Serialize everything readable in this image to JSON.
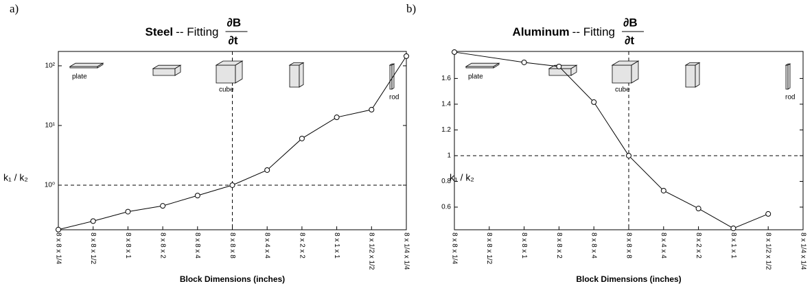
{
  "chart_data": [
    {
      "type": "line",
      "panel": "a)",
      "title": "Steel",
      "title_suffix": "-- Fitting",
      "title_fraction": {
        "numerator": "∂B",
        "denominator": "∂t"
      },
      "xlabel": "Block Dimensions (inches)",
      "ylabel": "k₁ / k₂",
      "categories": [
        "8 x 8 x 1/4",
        "8 x 8 x 1/2",
        "8 x 8 x 1",
        "8 x 8 x 2",
        "8 x 8 x 4",
        "8 x 8 x 8",
        "8 x 4 x 4",
        "8 x 2 x 2",
        "8 x 1 x 1",
        "8 x 1/2 x 1/2",
        "8 x 1/4 x 1/4"
      ],
      "x": [
        0,
        1,
        2,
        3,
        4,
        5,
        6,
        7,
        8,
        9,
        10
      ],
      "values": [
        0.18,
        0.25,
        0.36,
        0.45,
        0.67,
        1.0,
        1.79,
        6.05,
        13.7,
        18.4,
        145
      ],
      "xlim": [
        0,
        10
      ],
      "ylim": [
        0.179,
        174
      ],
      "log_y": true,
      "yticks": [
        {
          "value": 1,
          "label": "10⁰"
        },
        {
          "value": 10,
          "label": "10¹"
        },
        {
          "value": 100,
          "label": "10²"
        }
      ],
      "hline": 1,
      "vline": 5,
      "color": "#000000",
      "annotations": [
        "plate",
        "cube",
        "rod"
      ]
    },
    {
      "type": "line",
      "panel": "b)",
      "title": "Aluminum",
      "title_suffix": "-- Fitting",
      "title_fraction": {
        "numerator": "∂B",
        "denominator": "∂t"
      },
      "xlabel": "Block Dimensions (inches)",
      "ylabel": "k₁ / k₂",
      "categories": [
        "8 x 8 x 1/4",
        "8 x 8 x 1/2",
        "8 x 8 x 1",
        "8 x 8 x 2",
        "8 x 8 x 4",
        "8 x 8 x 8",
        "8 x 4 x 4",
        "8 x 2 x 2",
        "8 x 1 x 1",
        "8 x 1/2 x 1/2",
        "8 x 1/4 x 1/4"
      ],
      "x": [
        0,
        2,
        3,
        4,
        5,
        6,
        7,
        8,
        9
      ],
      "values": [
        1.805,
        1.725,
        1.693,
        1.416,
        1.0,
        0.728,
        0.589,
        0.435,
        0.547
      ],
      "xlim": [
        0,
        10
      ],
      "ylim": [
        0.424,
        1.81
      ],
      "log_y": false,
      "yticks": [
        0.6,
        0.8,
        1,
        1.2,
        1.4,
        1.6
      ],
      "hline": 1,
      "vline": 5,
      "color": "#000000",
      "annotations": [
        "plate",
        "cube",
        "rod"
      ]
    }
  ]
}
